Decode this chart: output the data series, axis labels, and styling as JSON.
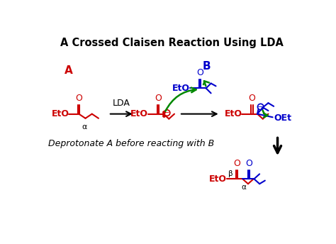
{
  "title": "A Crossed Claisen Reaction Using LDA",
  "title_fontsize": 10.5,
  "bg_color": "#ffffff",
  "label_A": "A",
  "label_B": "B",
  "label_LDA": "LDA",
  "label_alpha": "α",
  "label_beta": "β",
  "label_text": "Deprotonate A before reacting with B",
  "red": "#cc0000",
  "blue": "#0000cc",
  "green": "#008800",
  "black": "#000000"
}
